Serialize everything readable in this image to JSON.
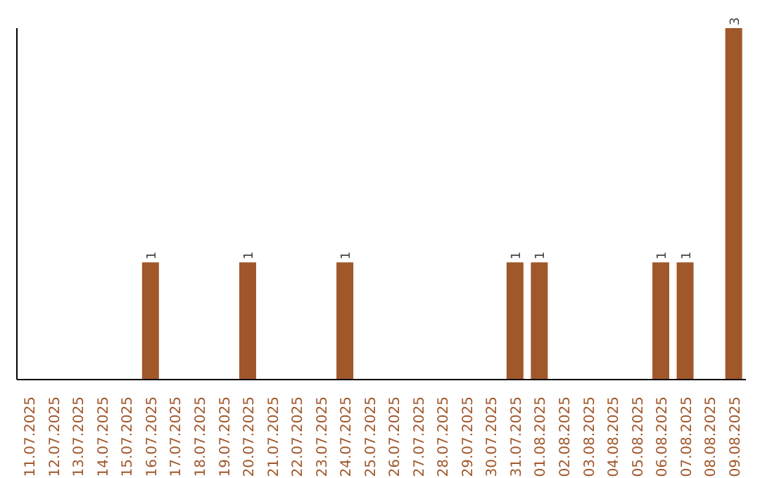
{
  "chart_data": {
    "type": "bar",
    "categories": [
      "11.07.2025",
      "12.07.2025",
      "13.07.2025",
      "14.07.2025",
      "15.07.2025",
      "16.07.2025",
      "17.07.2025",
      "18.07.2025",
      "19.07.2025",
      "20.07.2025",
      "21.07.2025",
      "22.07.2025",
      "23.07.2025",
      "24.07.2025",
      "25.07.2025",
      "26.07.2025",
      "27.07.2025",
      "28.07.2025",
      "29.07.2025",
      "30.07.2025",
      "31.07.2025",
      "01.08.2025",
      "02.08.2025",
      "03.08.2025",
      "04.08.2025",
      "05.08.2025",
      "06.08.2025",
      "07.08.2025",
      "08.08.2025",
      "09.08.2025"
    ],
    "values": [
      0,
      0,
      0,
      0,
      0,
      1,
      0,
      0,
      0,
      1,
      0,
      0,
      0,
      1,
      0,
      0,
      0,
      0,
      0,
      0,
      1,
      1,
      0,
      0,
      0,
      0,
      1,
      1,
      0,
      3
    ],
    "value_labels": [
      null,
      null,
      null,
      null,
      null,
      "1",
      null,
      null,
      null,
      "1",
      null,
      null,
      null,
      "1",
      null,
      null,
      null,
      null,
      null,
      null,
      "1",
      "1",
      null,
      null,
      null,
      null,
      "1",
      "1",
      null,
      "3"
    ],
    "color": "#a0572a"
  }
}
